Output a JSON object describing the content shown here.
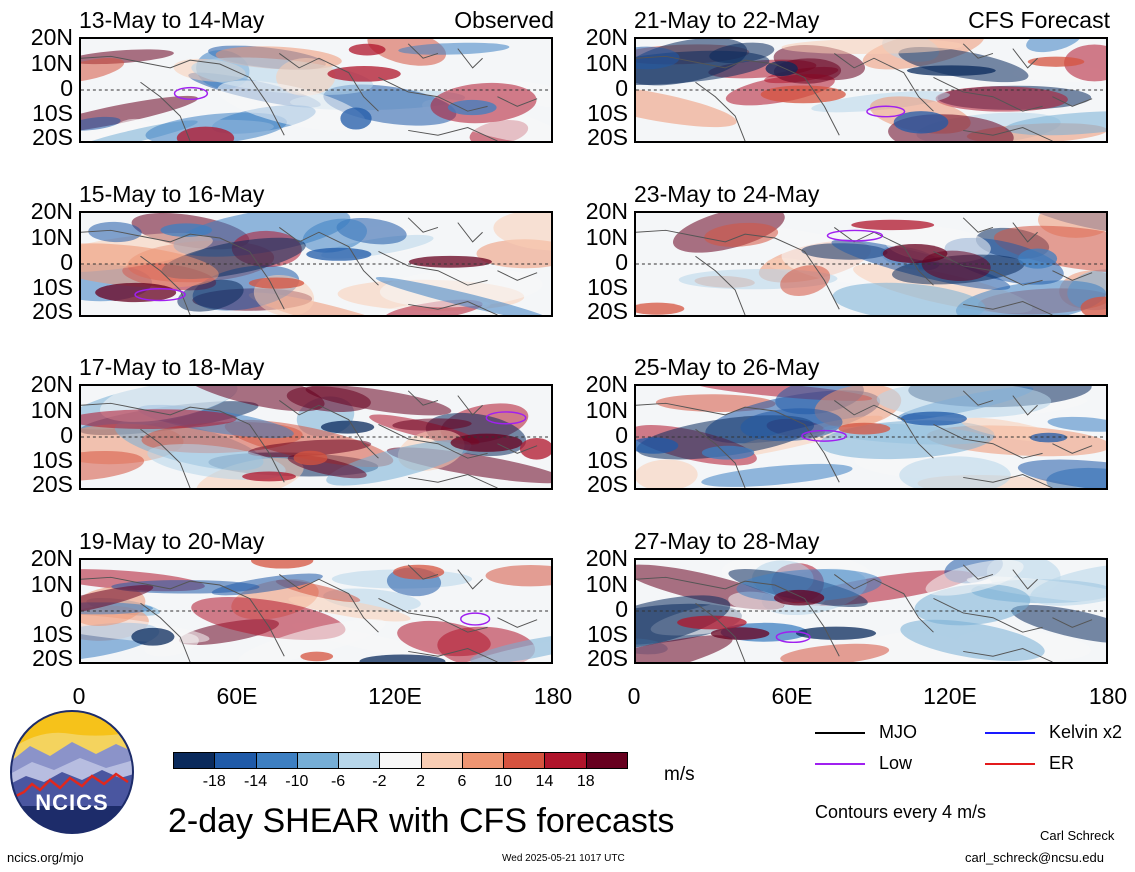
{
  "labels": {
    "observed": "Observed",
    "forecast": "CFS Forecast",
    "main_title": "2-day SHEAR with CFS forecasts",
    "units": "m/s",
    "contours_note": "Contours every 4 m/s",
    "site": "ncics.org/mjo",
    "timestamp": "Wed 2025-05-21 1017 UTC",
    "author": "Carl Schreck",
    "email": "carl_schreck@ncsu.edu",
    "logo_text": "NCICS"
  },
  "latitude_labels": [
    "20N",
    "10N",
    "0",
    "10S",
    "20S"
  ],
  "longitude_labels": [
    "0",
    "60E",
    "120E",
    "180"
  ],
  "panels_observed": [
    {
      "date": "13-May to 14-May"
    },
    {
      "date": "15-May to 16-May"
    },
    {
      "date": "17-May to 18-May"
    },
    {
      "date": "19-May to 20-May"
    }
  ],
  "panels_forecast": [
    {
      "date": "21-May to 22-May"
    },
    {
      "date": "23-May to 24-May"
    },
    {
      "date": "25-May to 26-May"
    },
    {
      "date": "27-May to 28-May"
    }
  ],
  "colorbar": {
    "labels": [
      "-18",
      "-14",
      "-10",
      "-6",
      "-2",
      "2",
      "6",
      "10",
      "14",
      "18"
    ],
    "colors": [
      "#0a2a5c",
      "#1f5aa8",
      "#3d7fc2",
      "#76aed6",
      "#b7d6ea",
      "#f7f7f7",
      "#f9cdb4",
      "#ef9572",
      "#d6533f",
      "#b0142b",
      "#67001f"
    ]
  },
  "legend": [
    {
      "label": "MJO",
      "color": "#000000"
    },
    {
      "label": "Kelvin x2",
      "color": "#1a1aff"
    },
    {
      "label": "Low",
      "color": "#a020f0"
    },
    {
      "label": "ER",
      "color": "#e31a1c"
    }
  ]
}
